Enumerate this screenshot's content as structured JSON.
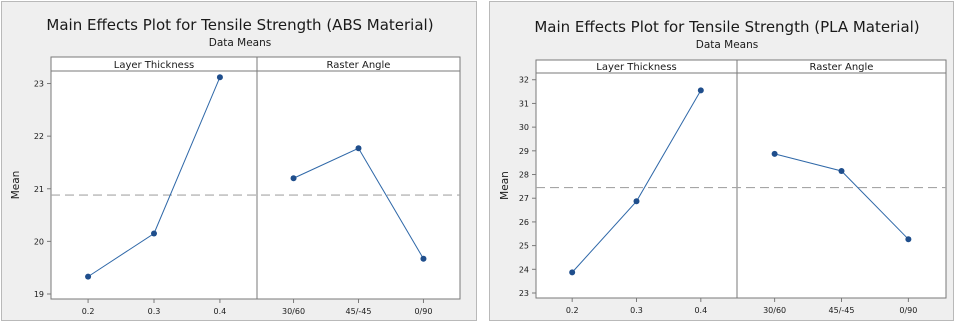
{
  "colors": {
    "panel_bg": "#efefef",
    "plot_bg": "#ffffff",
    "line": "#2f68a8",
    "marker": "#1f4e8c",
    "reference": "#a6a6a6",
    "axis": "#7a7a7a"
  },
  "chart_data": [
    {
      "type": "line",
      "title": "Main Effects Plot for Tensile Strength (ABS Material)",
      "subtitle": "Data Means",
      "ylabel": "Mean",
      "ylim": [
        19,
        23.2
      ],
      "yticks": [
        19,
        20,
        21,
        22,
        23
      ],
      "reference_mean": 20.88,
      "facets": [
        {
          "name": "Layer Thickness",
          "categories": [
            "0.2",
            "0.3",
            "0.4"
          ],
          "values": [
            19.33,
            20.15,
            23.12
          ]
        },
        {
          "name": "Raster Angle",
          "categories": [
            "30/60",
            "45/-45",
            "0/90"
          ],
          "values": [
            21.2,
            21.77,
            19.67
          ]
        }
      ],
      "grid": false
    },
    {
      "type": "line",
      "title": "Main Effects Plot for Tensile Strength (PLA Material)",
      "subtitle": "Data Means",
      "ylabel": "Mean",
      "ylim": [
        23,
        32.2
      ],
      "yticks": [
        23,
        24,
        25,
        26,
        27,
        28,
        29,
        30,
        31,
        32
      ],
      "reference_mean": 27.45,
      "facets": [
        {
          "name": "Layer Thickness",
          "categories": [
            "0.2",
            "0.3",
            "0.4"
          ],
          "values": [
            23.87,
            26.87,
            31.55
          ]
        },
        {
          "name": "Raster Angle",
          "categories": [
            "30/60",
            "45/-45",
            "0/90"
          ],
          "values": [
            28.87,
            28.15,
            25.27
          ]
        }
      ],
      "grid": false
    }
  ]
}
